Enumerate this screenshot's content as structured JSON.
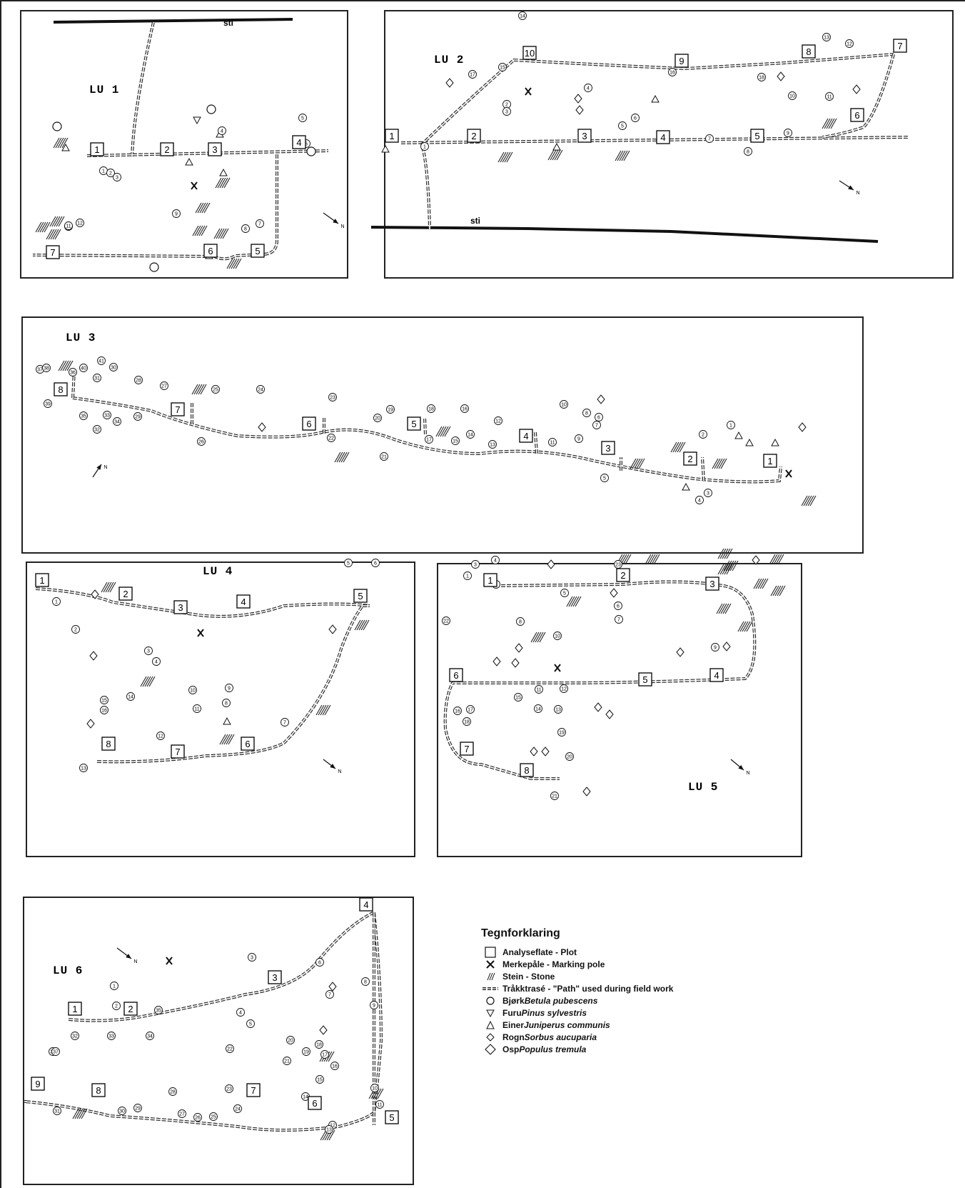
{
  "panels": [
    {
      "id": "LU1",
      "title": "LU 1",
      "path_label": "sti",
      "north": "N",
      "plots": [
        {
          "n": "1"
        },
        {
          "n": "2"
        },
        {
          "n": "3"
        },
        {
          "n": "4"
        },
        {
          "n": "5"
        },
        {
          "n": "6"
        },
        {
          "n": "7"
        }
      ],
      "trees": [
        "1",
        "2",
        "3",
        "4",
        "5",
        "6",
        "7",
        "8",
        "9",
        "10",
        "11",
        "12"
      ]
    },
    {
      "id": "LU2",
      "title": "LU 2",
      "path_label": "sti",
      "north": "N",
      "plots": [
        {
          "n": "1"
        },
        {
          "n": "2"
        },
        {
          "n": "3"
        },
        {
          "n": "4"
        },
        {
          "n": "5"
        },
        {
          "n": "6"
        },
        {
          "n": "7"
        },
        {
          "n": "8"
        },
        {
          "n": "9"
        },
        {
          "n": "10"
        }
      ],
      "trees": [
        "1",
        "2",
        "3",
        "4",
        "5",
        "6",
        "7",
        "8",
        "9",
        "10",
        "11",
        "12",
        "13",
        "14",
        "15",
        "16",
        "17",
        "18"
      ]
    },
    {
      "id": "LU3",
      "title": "LU 3",
      "north": "N",
      "plots": [
        {
          "n": "1"
        },
        {
          "n": "2"
        },
        {
          "n": "3"
        },
        {
          "n": "4"
        },
        {
          "n": "5"
        },
        {
          "n": "6"
        },
        {
          "n": "7"
        },
        {
          "n": "8"
        }
      ],
      "trees": [
        "1",
        "2",
        "3",
        "4",
        "5",
        "6",
        "7",
        "8",
        "9",
        "10",
        "11",
        "12",
        "13",
        "14",
        "15",
        "16",
        "17",
        "18",
        "19",
        "20",
        "21",
        "22",
        "23",
        "24",
        "25",
        "26",
        "27",
        "28",
        "29",
        "30",
        "31",
        "32",
        "33",
        "34",
        "35",
        "36",
        "37",
        "38",
        "39",
        "40",
        "41"
      ]
    },
    {
      "id": "LU4",
      "title": "LU 4",
      "north": "N",
      "plots": [
        {
          "n": "1"
        },
        {
          "n": "2"
        },
        {
          "n": "3"
        },
        {
          "n": "4"
        },
        {
          "n": "5"
        },
        {
          "n": "6"
        },
        {
          "n": "7"
        },
        {
          "n": "8"
        }
      ],
      "trees": [
        "1",
        "2",
        "3",
        "4",
        "5",
        "6",
        "7",
        "8",
        "9",
        "10",
        "11",
        "12",
        "13",
        "14",
        "15",
        "16"
      ]
    },
    {
      "id": "LU5",
      "title": "LU 5",
      "north": "N",
      "plots": [
        {
          "n": "1"
        },
        {
          "n": "2"
        },
        {
          "n": "3"
        },
        {
          "n": "4"
        },
        {
          "n": "5"
        },
        {
          "n": "6"
        },
        {
          "n": "7"
        },
        {
          "n": "8"
        }
      ],
      "trees": [
        "1",
        "2",
        "3",
        "4",
        "5",
        "6",
        "7",
        "8",
        "9",
        "10",
        "11",
        "12",
        "13",
        "14",
        "15",
        "16",
        "17",
        "18",
        "19",
        "20",
        "21",
        "22",
        "23"
      ]
    },
    {
      "id": "LU6",
      "title": "LU 6",
      "north": "N",
      "plots": [
        {
          "n": "1"
        },
        {
          "n": "2"
        },
        {
          "n": "3"
        },
        {
          "n": "4"
        },
        {
          "n": "5"
        },
        {
          "n": "6"
        },
        {
          "n": "7"
        },
        {
          "n": "8"
        },
        {
          "n": "9"
        }
      ],
      "trees": [
        "1",
        "2",
        "3",
        "4",
        "5",
        "6",
        "7",
        "8",
        "9",
        "10",
        "11",
        "12",
        "13",
        "14",
        "15",
        "16",
        "17",
        "18",
        "19",
        "20",
        "21",
        "22",
        "23",
        "24",
        "25",
        "26",
        "27",
        "28",
        "29",
        "30",
        "31",
        "32",
        "33",
        "34",
        "35",
        "36",
        "37"
      ]
    }
  ],
  "legend": {
    "title": "Tegnforklaring",
    "items": [
      {
        "sym": "square",
        "text": "Analyseflate - Plot"
      },
      {
        "sym": "cross",
        "text": "Merkepåle - Marking pole"
      },
      {
        "sym": "stone",
        "text": "Stein - Stone"
      },
      {
        "sym": "path",
        "text": "Tråkktrasé - \"Path\" used during field work"
      },
      {
        "sym": "circle",
        "text": "Bjørk ",
        "latin": "Betula pubescens"
      },
      {
        "sym": "tri-down",
        "text": "Furu ",
        "latin": "Pinus sylvestris"
      },
      {
        "sym": "tri-up",
        "text": "Einer ",
        "latin": "Juniperus communis"
      },
      {
        "sym": "diamond-small",
        "text": "Rogn ",
        "latin": "Sorbus aucuparia"
      },
      {
        "sym": "diamond",
        "text": "Osp ",
        "latin": "Populus tremula"
      }
    ]
  },
  "colors": {
    "ink": "#111111",
    "paper": "#ffffff"
  }
}
